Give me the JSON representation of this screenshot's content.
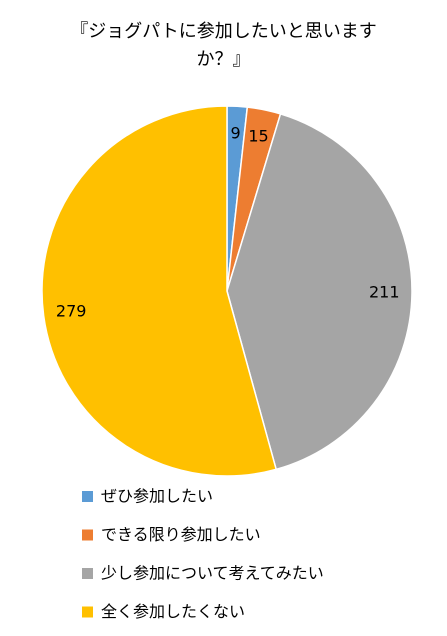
{
  "chart_data": {
    "type": "pie",
    "title": "『ジョグパトに参加したいと思いますか？』",
    "categories": [
      "ぜひ参加したい",
      "できる限り参加したい",
      "少し参加について考えてみたい",
      "全く参加したくない"
    ],
    "values": [
      9,
      15,
      211,
      279
    ],
    "colors": [
      "#5b9bd5",
      "#ed7d31",
      "#a5a5a5",
      "#ffc000"
    ],
    "legend": "bottom"
  }
}
